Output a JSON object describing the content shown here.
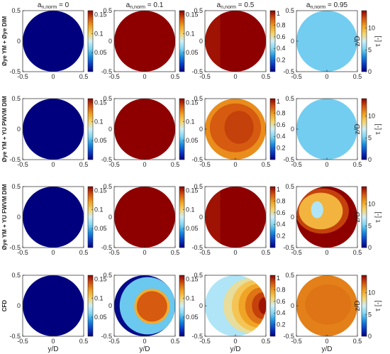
{
  "chart_data": {
    "type": "heatmap",
    "columns": [
      {
        "title_main": "a",
        "title_sub": "n,norm",
        "title_value": " = 0",
        "cbar_ticks": [
          "0.05",
          "0.1",
          "0.15"
        ],
        "cbar_tick_values": [
          0.05,
          0.1,
          0.15
        ],
        "cbar_range": [
          0,
          0.16
        ]
      },
      {
        "title_main": "a",
        "title_sub": "n,norm",
        "title_value": " = 0.1",
        "cbar_ticks": [
          "0.05",
          "0.1",
          "0.15"
        ],
        "cbar_tick_values": [
          0.05,
          0.1,
          0.15
        ],
        "cbar_range": [
          0,
          0.16
        ]
      },
      {
        "title_main": "a",
        "title_sub": "n,norm",
        "title_value": " = 0.5",
        "cbar_ticks": [
          "0.2",
          "0.4",
          "0.6",
          "0.8",
          "1"
        ],
        "cbar_tick_values": [
          0.2,
          0.4,
          0.6,
          0.8,
          1
        ],
        "cbar_range": [
          0,
          1.05
        ]
      },
      {
        "title_main": "a",
        "title_sub": "n,norm",
        "title_value": " = 0.95",
        "cbar_ticks": [
          "0",
          "5",
          "10"
        ],
        "cbar_tick_values": [
          0,
          5,
          10
        ],
        "cbar_range": [
          0,
          14
        ]
      }
    ],
    "rows": [
      {
        "label": "Øye YM + Øye DIM"
      },
      {
        "label": "Øye YM + YU PWVM DIM"
      },
      {
        "label": "Øye YM + YU FWVM DIM"
      },
      {
        "label": "CFD"
      }
    ],
    "xlabel": "y/D",
    "ylabel": "z/D",
    "colorbar_label": "τ [-]",
    "x_ticks": [
      "-0.5",
      "0",
      "0.5"
    ],
    "x_tick_values": [
      -0.5,
      0,
      0.5
    ],
    "y_ticks": [
      "-0.5",
      "0",
      "0.5"
    ],
    "y_tick_values": [
      -0.5,
      0,
      0.5
    ],
    "xlim": [
      -0.5,
      0.5
    ],
    "ylim": [
      -0.5,
      0.5
    ],
    "colormap": [
      "#00007f",
      "#0b3cc6",
      "#1a8ee0",
      "#7fd6f2",
      "#cfeff9",
      "#f5d36a",
      "#f0a020",
      "#d2510e",
      "#8e0000"
    ],
    "fields": [
      [
        {
          "base_level": 0.0,
          "layers": []
        },
        {
          "base_level": 1.0,
          "layers": []
        },
        {
          "base_level": 0.97,
          "layers": [
            {
              "shape": "half",
              "side": "right",
              "cut_y": -0.25,
              "level": 1.0
            }
          ]
        },
        {
          "base_level": 0.36,
          "layers": []
        }
      ],
      [
        {
          "base_level": 0.0,
          "layers": []
        },
        {
          "base_level": 1.0,
          "layers": []
        },
        {
          "base_level": 0.78,
          "layers": [
            {
              "shape": "ellipse",
              "cy": 0.0,
              "cz": 0.02,
              "ry": 0.42,
              "rz": 0.4,
              "level": 0.86
            },
            {
              "shape": "ellipse",
              "cy": 0.06,
              "cz": 0.03,
              "ry": 0.24,
              "rz": 0.27,
              "level": 0.9
            }
          ]
        },
        {
          "base_level": 0.36,
          "layers": []
        }
      ],
      [
        {
          "base_level": 0.0,
          "layers": []
        },
        {
          "base_level": 1.0,
          "layers": []
        },
        {
          "base_level": 0.97,
          "layers": [
            {
              "shape": "half",
              "side": "right",
              "cut_y": -0.25,
              "level": 1.0
            }
          ]
        },
        {
          "base_level": 1.0,
          "layers": [
            {
              "shape": "ellipse",
              "cy": -0.08,
              "cz": 0.1,
              "ry": 0.44,
              "rz": 0.37,
              "level": 0.9
            },
            {
              "shape": "ellipse",
              "cy": -0.1,
              "cz": 0.1,
              "ry": 0.36,
              "rz": 0.3,
              "level": 0.7
            },
            {
              "shape": "ellipse",
              "cy": -0.16,
              "cz": 0.12,
              "ry": 0.1,
              "rz": 0.14,
              "level": 0.45
            }
          ]
        }
      ],
      [
        {
          "base_level": 0.0,
          "layers": []
        },
        {
          "base_level": 0.02,
          "layers": [
            {
              "shape": "ellipse",
              "cy": 0.05,
              "cz": 0.0,
              "ry": 0.46,
              "rz": 0.47,
              "level": 0.35
            },
            {
              "shape": "ellipse",
              "cy": 0.12,
              "cz": -0.01,
              "ry": 0.29,
              "rz": 0.29,
              "level": 0.72
            },
            {
              "shape": "ellipse",
              "cy": 0.12,
              "cz": -0.01,
              "ry": 0.25,
              "rz": 0.25,
              "level": 0.86
            }
          ]
        },
        {
          "base_level": 0.45,
          "layers": [
            {
              "shape": "ellipse",
              "cy": 0.28,
              "cz": 0.0,
              "ry": 0.48,
              "rz": 0.46,
              "level": 0.58
            },
            {
              "shape": "ellipse",
              "cy": 0.34,
              "cz": 0.0,
              "ry": 0.4,
              "rz": 0.42,
              "level": 0.66
            },
            {
              "shape": "ellipse",
              "cy": 0.38,
              "cz": 0.0,
              "ry": 0.33,
              "rz": 0.36,
              "level": 0.74
            },
            {
              "shape": "ellipse",
              "cy": 0.42,
              "cz": 0.0,
              "ry": 0.26,
              "rz": 0.3,
              "level": 0.82
            },
            {
              "shape": "ellipse",
              "cy": 0.45,
              "cz": 0.0,
              "ry": 0.18,
              "rz": 0.22,
              "level": 0.9
            },
            {
              "shape": "ellipse",
              "cy": 0.48,
              "cz": 0.0,
              "ry": 0.1,
              "rz": 0.14,
              "level": 0.97
            }
          ]
        },
        {
          "base_level": 0.8,
          "layers": [
            {
              "shape": "ellipse",
              "cy": 0.02,
              "cz": 0.02,
              "ry": 0.38,
              "rz": 0.33,
              "level": 0.82
            }
          ]
        }
      ]
    ]
  }
}
